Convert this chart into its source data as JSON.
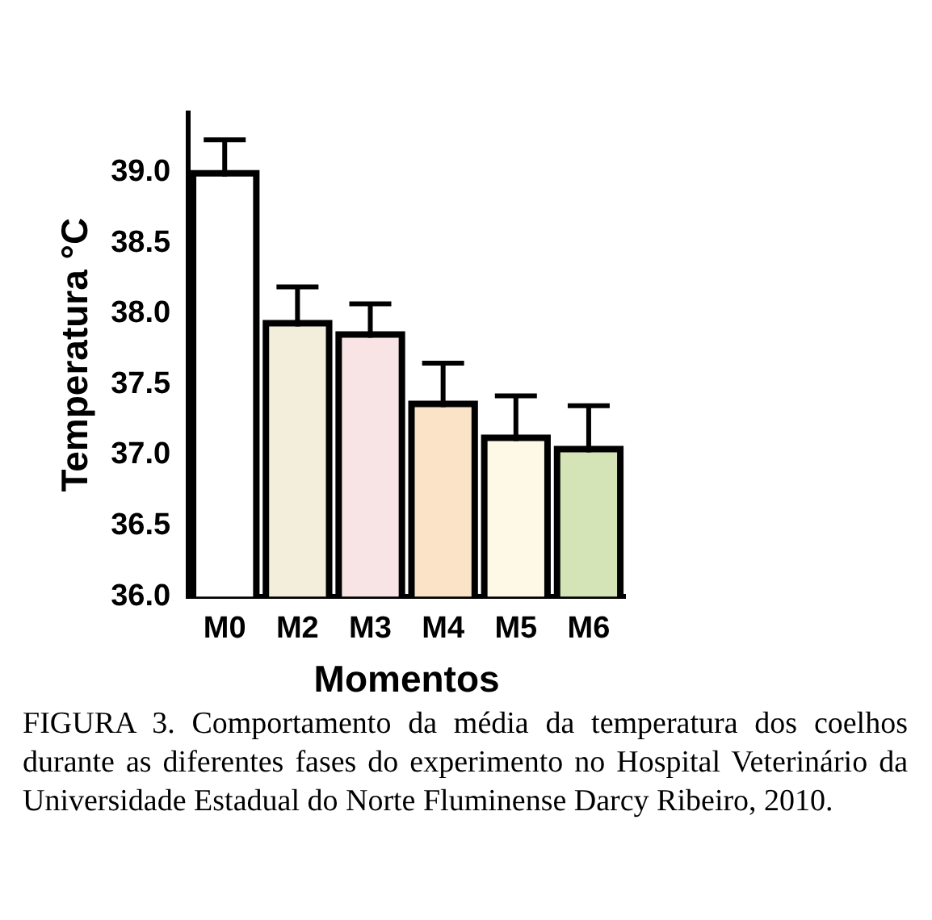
{
  "chart_data": {
    "type": "bar",
    "xlabel": "Momentos",
    "ylabel": "Temperatura °C",
    "categories": [
      "M0",
      "M2",
      "M3",
      "M4",
      "M5",
      "M6"
    ],
    "values": [
      38.97,
      37.91,
      37.83,
      37.34,
      37.1,
      37.02
    ],
    "errors": [
      [
        38.97,
        39.23
      ],
      [
        37.91,
        38.19
      ],
      [
        37.83,
        38.07
      ],
      [
        37.34,
        37.65
      ],
      [
        37.1,
        37.42
      ],
      [
        37.02,
        37.35
      ]
    ],
    "colors": [
      "#ffffff",
      "#f3eedb",
      "#f8e4e4",
      "#fae3c6",
      "#fdf9e6",
      "#d5e4b6"
    ],
    "ylim": [
      36,
      39.42
    ],
    "yticks": [
      {
        "value": 36,
        "label": "36.0"
      },
      {
        "value": 36.5,
        "label": "36.5"
      },
      {
        "value": 37,
        "label": "37.0"
      },
      {
        "value": 37.5,
        "label": "37.5"
      },
      {
        "value": 38,
        "label": "38.0"
      },
      {
        "value": 38.5,
        "label": "38.5"
      },
      {
        "value": 39,
        "label": "39.0"
      }
    ],
    "grid": false,
    "legend": false,
    "annotations": [
      "FIGURA 3. Comportamento da média da temperatura dos coelhos durante as diferentes fases do experimento no Hospital Veterinário da Universidade Estadual do Norte Fluminense Darcy Ribeiro, 2010."
    ]
  }
}
